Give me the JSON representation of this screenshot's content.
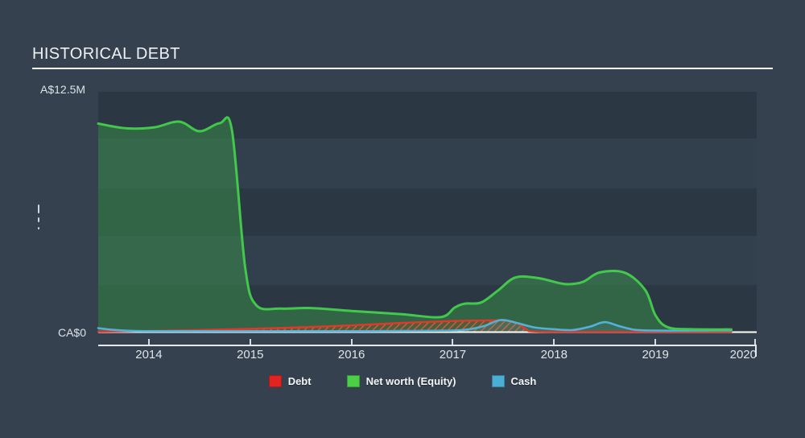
{
  "title": {
    "text": "HISTORICAL DEBT"
  },
  "y_axis": {
    "top_label": "A$12.5M",
    "zero_label": "CA$0"
  },
  "x_axis": {
    "ticks": [
      {
        "label": "2014",
        "t": 2014
      },
      {
        "label": "2015",
        "t": 2015
      },
      {
        "label": "2016",
        "t": 2016
      },
      {
        "label": "2017",
        "t": 2017
      },
      {
        "label": "2018",
        "t": 2018
      },
      {
        "label": "2019",
        "t": 2019
      },
      {
        "label": "2020",
        "t": 2020
      }
    ]
  },
  "legend": [
    {
      "name": "debt",
      "label": "Debt",
      "swatch": "#e0241f"
    },
    {
      "name": "networth",
      "label": "Net worth (Equity)",
      "swatch": "#4bcf47"
    },
    {
      "name": "cash",
      "label": "Cash",
      "swatch": "#4aaed6"
    }
  ],
  "colors": {
    "background": "#35414e",
    "band_dark": "#2b3844",
    "band_light": "#323f4c",
    "title_text": "#eef1f3",
    "axis_text": "#dde3e8",
    "zero_line": "#ffffff",
    "networth_line": "#42c94b",
    "networth_fill": "rgba(66,201,75,0.30)",
    "debt_line": "#e0392b",
    "debt_hatch": "rgba(236,108,48,0.85)",
    "debt_fill": "rgba(190,60,35,0.22)",
    "cash_line": "#54b0d6",
    "cash_fill": "rgba(84,176,214,0.16)"
  },
  "chart_data": {
    "type": "area",
    "title": "HISTORICAL DEBT",
    "x_range": [
      2013.5,
      2020
    ],
    "y_range_M": [
      0,
      12.5
    ],
    "y_gridline_step_M": 2.5,
    "x_ticks": [
      2014,
      2015,
      2016,
      2017,
      2018,
      2019,
      2020
    ],
    "units": "A$ millions",
    "series": [
      {
        "name": "Net worth (Equity)",
        "style": "area",
        "points": [
          [
            2013.5,
            10.85
          ],
          [
            2013.78,
            10.6
          ],
          [
            2014.05,
            10.65
          ],
          [
            2014.3,
            10.95
          ],
          [
            2014.5,
            10.45
          ],
          [
            2014.7,
            10.87
          ],
          [
            2014.82,
            10.5
          ],
          [
            2014.95,
            3.4
          ],
          [
            2015.06,
            1.42
          ],
          [
            2015.3,
            1.24
          ],
          [
            2015.6,
            1.27
          ],
          [
            2016.0,
            1.12
          ],
          [
            2016.5,
            0.95
          ],
          [
            2016.88,
            0.8
          ],
          [
            2017.02,
            1.3
          ],
          [
            2017.12,
            1.5
          ],
          [
            2017.28,
            1.56
          ],
          [
            2017.45,
            2.2
          ],
          [
            2017.62,
            2.86
          ],
          [
            2017.85,
            2.82
          ],
          [
            2018.1,
            2.52
          ],
          [
            2018.28,
            2.62
          ],
          [
            2018.45,
            3.12
          ],
          [
            2018.7,
            3.1
          ],
          [
            2018.9,
            2.2
          ],
          [
            2019.0,
            0.9
          ],
          [
            2019.12,
            0.28
          ],
          [
            2019.35,
            0.17
          ],
          [
            2019.75,
            0.16
          ]
        ]
      },
      {
        "name": "Debt",
        "style": "hatched-area",
        "points": [
          [
            2013.5,
            0.05
          ],
          [
            2014.0,
            0.08
          ],
          [
            2014.5,
            0.13
          ],
          [
            2015.0,
            0.19
          ],
          [
            2015.5,
            0.27
          ],
          [
            2016.0,
            0.37
          ],
          [
            2016.5,
            0.5
          ],
          [
            2016.9,
            0.58
          ],
          [
            2017.2,
            0.62
          ],
          [
            2017.5,
            0.63
          ],
          [
            2017.63,
            0.5
          ],
          [
            2017.73,
            0.16
          ],
          [
            2017.83,
            0.05
          ],
          [
            2018.5,
            0.04
          ],
          [
            2019.2,
            0.04
          ],
          [
            2019.75,
            0.04
          ]
        ]
      },
      {
        "name": "Cash",
        "style": "area",
        "points": [
          [
            2013.5,
            0.23
          ],
          [
            2013.65,
            0.14
          ],
          [
            2013.85,
            0.08
          ],
          [
            2014.3,
            0.07
          ],
          [
            2015.2,
            0.07
          ],
          [
            2016.2,
            0.07
          ],
          [
            2016.8,
            0.09
          ],
          [
            2017.1,
            0.13
          ],
          [
            2017.3,
            0.32
          ],
          [
            2017.47,
            0.65
          ],
          [
            2017.63,
            0.5
          ],
          [
            2017.8,
            0.27
          ],
          [
            2018.0,
            0.17
          ],
          [
            2018.18,
            0.13
          ],
          [
            2018.35,
            0.3
          ],
          [
            2018.5,
            0.54
          ],
          [
            2018.65,
            0.32
          ],
          [
            2018.8,
            0.14
          ],
          [
            2019.0,
            0.1
          ],
          [
            2019.4,
            0.1
          ],
          [
            2019.75,
            0.11
          ]
        ]
      }
    ]
  }
}
